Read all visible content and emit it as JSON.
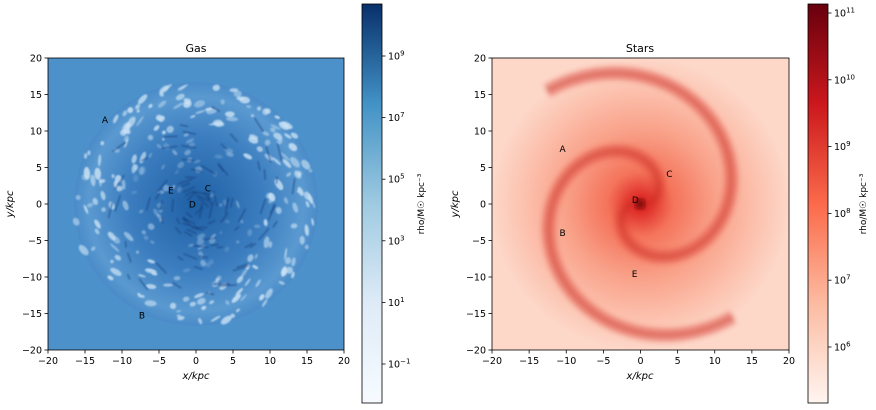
{
  "panels": [
    {
      "title": "Gas",
      "xlabel": "x/kpc",
      "ylabel": "y/kpc",
      "xlim": [
        -20,
        20
      ],
      "ylim": [
        -20,
        20
      ],
      "xticks": [
        "−20",
        "−15",
        "−10",
        "−5",
        "0",
        "5",
        "10",
        "15",
        "20"
      ],
      "yticks": [
        "−20",
        "−15",
        "−10",
        "−5",
        "0",
        "5",
        "10",
        "15",
        "20"
      ],
      "colormap": [
        "#f7fbff",
        "#deebf7",
        "#9ecae1",
        "#4292c6",
        "#08306b"
      ],
      "colorbar_label": "rho/M☉ kpc⁻³",
      "colorbar_ticks": [
        {
          "base": "10",
          "exp": "9"
        },
        {
          "base": "10",
          "exp": "7"
        },
        {
          "base": "10",
          "exp": "5"
        },
        {
          "base": "10",
          "exp": "3"
        },
        {
          "base": "10",
          "exp": "1"
        },
        {
          "base": "10",
          "exp": "−1"
        }
      ],
      "markers": [
        {
          "label": "A",
          "x": -12.3,
          "y": 11.6
        },
        {
          "label": "B",
          "x": -7.3,
          "y": -15.2
        },
        {
          "label": "C",
          "x": 1.6,
          "y": 2.2
        },
        {
          "label": "D",
          "x": -0.5,
          "y": 0.0
        },
        {
          "label": "E",
          "x": -3.4,
          "y": 1.9
        }
      ]
    },
    {
      "title": "Stars",
      "xlabel": "x/kpc",
      "ylabel": "y/kpc",
      "xlim": [
        -20,
        20
      ],
      "ylim": [
        -20,
        20
      ],
      "xticks": [
        "−20",
        "−15",
        "−10",
        "−5",
        "0",
        "5",
        "10",
        "15",
        "20"
      ],
      "yticks": [
        "−20",
        "−15",
        "−10",
        "−5",
        "0",
        "5",
        "10",
        "15",
        "20"
      ],
      "colormap": [
        "#fff5f0",
        "#fcbba1",
        "#fb6a4a",
        "#cb181d",
        "#67000d"
      ],
      "colorbar_label": "rho/M☉ kpc⁻³",
      "colorbar_ticks": [
        {
          "base": "10",
          "exp": "11"
        },
        {
          "base": "10",
          "exp": "10"
        },
        {
          "base": "10",
          "exp": "9"
        },
        {
          "base": "10",
          "exp": "8"
        },
        {
          "base": "10",
          "exp": "7"
        },
        {
          "base": "10",
          "exp": "6"
        }
      ],
      "markers": [
        {
          "label": "A",
          "x": -10.5,
          "y": 7.6
        },
        {
          "label": "B",
          "x": -10.5,
          "y": -3.9
        },
        {
          "label": "C",
          "x": 3.9,
          "y": 4.2
        },
        {
          "label": "D",
          "x": -0.7,
          "y": 0.6
        },
        {
          "label": "E",
          "x": -0.8,
          "y": -9.5
        }
      ]
    }
  ]
}
